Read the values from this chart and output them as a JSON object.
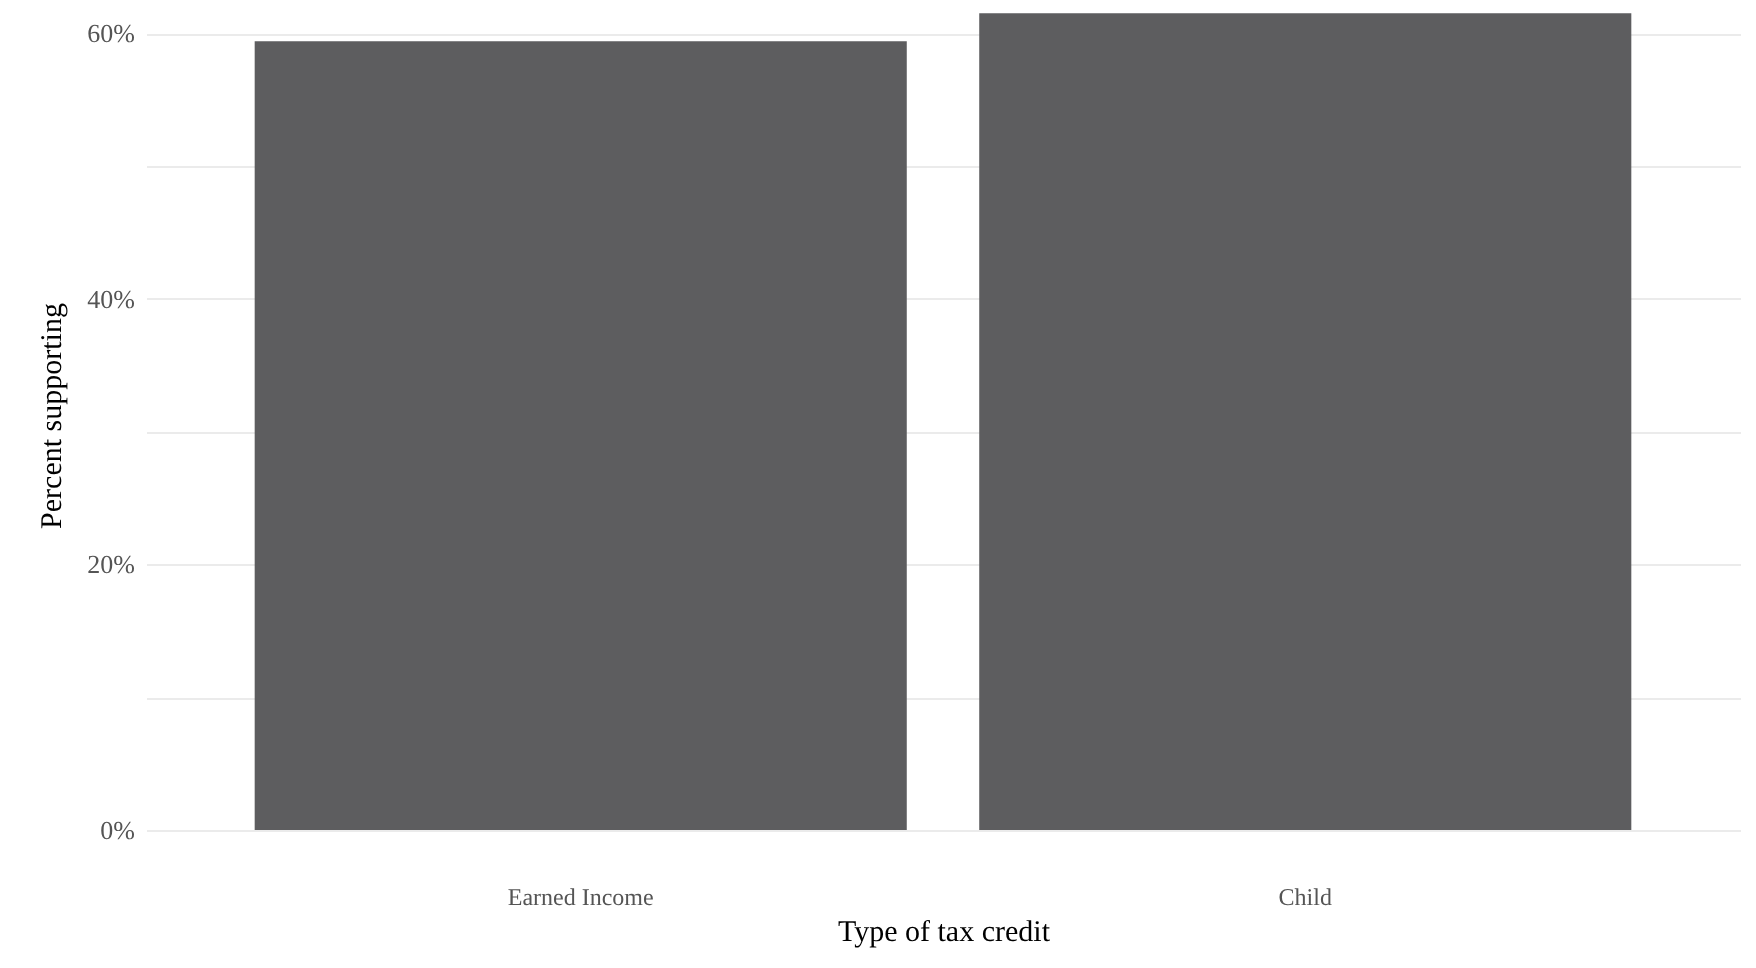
{
  "chart_data": {
    "type": "bar",
    "xlabel": "Type of tax credit",
    "ylabel": "Percent supporting",
    "categories": [
      "Earned Income",
      "Child"
    ],
    "values": [
      59.4,
      61.5
    ],
    "color": "#5d5d5f",
    "ylim": [
      0,
      62.5
    ],
    "yticks": [
      {
        "value": 0,
        "label": "0%"
      },
      {
        "value": 10,
        "label": null
      },
      {
        "value": 20,
        "label": "20%"
      },
      {
        "value": 30,
        "label": null
      },
      {
        "value": 40,
        "label": "40%"
      },
      {
        "value": 50,
        "label": null
      },
      {
        "value": 60,
        "label": "60%"
      }
    ],
    "grid": "y"
  }
}
